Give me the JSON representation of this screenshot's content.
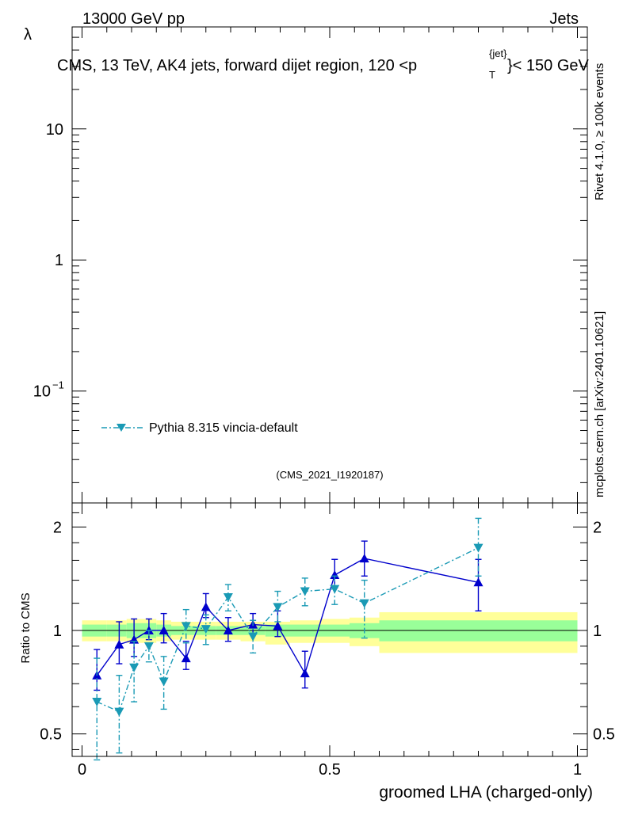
{
  "header": {
    "energy_label": "13000 GeV pp",
    "category_label": "Jets",
    "plot_title_main": "CMS, 13 TeV, AK4 jets, forward dijet region, 120 <p",
    "plot_title_sup": "{jet}",
    "plot_title_sub": "T",
    "plot_title_tail": "}< 150 GeV",
    "side_label_rivet": "Rivet 4.1.0, ≥ 100k events",
    "side_label_mcplots": "mcplots.cern.ch [arXiv:2401.10621]",
    "analysis_id": "(CMS_2021_I1920187)"
  },
  "colors": {
    "model": "#1a9ab5",
    "reference": "#0000cc",
    "band_inner": "#99ff99",
    "band_outer": "#ffff99"
  },
  "chart_data": [
    {
      "type": "line",
      "title": "CMS, 13 TeV, AK4 jets, forward dijet region, 120 < p_T^{jet} < 150 GeV",
      "ylabel": "λ",
      "yscale": "log",
      "ylim": [
        0.014,
        60
      ],
      "y_ticks": [
        {
          "value": 0.1,
          "base": "10",
          "exp": "−1"
        },
        {
          "value": 1,
          "label": "1"
        },
        {
          "value": 10,
          "label": "10"
        }
      ],
      "xlim": [
        -0.02,
        1.02
      ],
      "legend": [
        {
          "name": "Pythia 8.315 vincia-default",
          "color": "#1a9ab5",
          "marker": "triangle-down",
          "style": "dash-dot"
        }
      ],
      "legend_position": "lower-left",
      "series": []
    },
    {
      "type": "line",
      "xlabel": "groomed LHA (charged-only)",
      "ylabel": "Ratio to CMS",
      "yscale": "log",
      "ylim": [
        0.43,
        2.35
      ],
      "xlim": [
        -0.02,
        1.02
      ],
      "x_ticks": [
        {
          "value": 0,
          "label": "0"
        },
        {
          "value": 0.5,
          "label": "0.5"
        },
        {
          "value": 1,
          "label": "1"
        }
      ],
      "y_ticks": [
        {
          "value": 0.5,
          "label": "0.5"
        },
        {
          "value": 1,
          "label": "1"
        },
        {
          "value": 2,
          "label": "2"
        }
      ],
      "reference_bands": [
        {
          "x0": 0.0,
          "x1": 0.05,
          "inner": [
            0.96,
            1.04
          ],
          "outer": [
            0.93,
            1.07
          ]
        },
        {
          "x0": 0.05,
          "x1": 0.09,
          "inner": [
            0.96,
            1.04
          ],
          "outer": [
            0.93,
            1.07
          ]
        },
        {
          "x0": 0.09,
          "x1": 0.12,
          "inner": [
            0.95,
            1.05
          ],
          "outer": [
            0.92,
            1.08
          ]
        },
        {
          "x0": 0.12,
          "x1": 0.15,
          "inner": [
            0.95,
            1.05
          ],
          "outer": [
            0.92,
            1.08
          ]
        },
        {
          "x0": 0.15,
          "x1": 0.18,
          "inner": [
            0.96,
            1.04
          ],
          "outer": [
            0.93,
            1.07
          ]
        },
        {
          "x0": 0.18,
          "x1": 0.23,
          "inner": [
            0.97,
            1.03
          ],
          "outer": [
            0.94,
            1.06
          ]
        },
        {
          "x0": 0.23,
          "x1": 0.27,
          "inner": [
            0.97,
            1.03
          ],
          "outer": [
            0.94,
            1.06
          ]
        },
        {
          "x0": 0.27,
          "x1": 0.32,
          "inner": [
            0.97,
            1.03
          ],
          "outer": [
            0.94,
            1.06
          ]
        },
        {
          "x0": 0.32,
          "x1": 0.37,
          "inner": [
            0.97,
            1.03
          ],
          "outer": [
            0.93,
            1.06
          ]
        },
        {
          "x0": 0.37,
          "x1": 0.42,
          "inner": [
            0.96,
            1.04
          ],
          "outer": [
            0.91,
            1.06
          ]
        },
        {
          "x0": 0.42,
          "x1": 0.48,
          "inner": [
            0.96,
            1.04
          ],
          "outer": [
            0.92,
            1.07
          ]
        },
        {
          "x0": 0.48,
          "x1": 0.54,
          "inner": [
            0.96,
            1.04
          ],
          "outer": [
            0.92,
            1.08
          ]
        },
        {
          "x0": 0.54,
          "x1": 0.6,
          "inner": [
            0.95,
            1.05
          ],
          "outer": [
            0.9,
            1.09
          ]
        },
        {
          "x0": 0.6,
          "x1": 1.0,
          "inner": [
            0.93,
            1.07
          ],
          "outer": [
            0.86,
            1.13
          ]
        }
      ],
      "series": [
        {
          "name": "Reference model",
          "color": "#0000cc",
          "marker": "triangle-up",
          "style": "solid",
          "x": [
            0.03,
            0.075,
            0.105,
            0.135,
            0.165,
            0.21,
            0.25,
            0.295,
            0.345,
            0.395,
            0.45,
            0.51,
            0.57,
            0.8
          ],
          "y": [
            0.74,
            0.91,
            0.94,
            1.0,
            1.0,
            0.83,
            1.17,
            1.0,
            1.04,
            1.03,
            0.75,
            1.45,
            1.62,
            1.38
          ],
          "err_low": [
            0.07,
            0.11,
            0.1,
            0.06,
            0.08,
            0.06,
            0.08,
            0.07,
            0.06,
            0.07,
            0.07,
            0.12,
            0.18,
            0.24
          ],
          "err_high": [
            0.14,
            0.15,
            0.14,
            0.08,
            0.12,
            0.1,
            0.11,
            0.09,
            0.08,
            0.11,
            0.12,
            0.16,
            0.2,
            0.23
          ]
        },
        {
          "name": "Pythia 8.315 vincia-default",
          "color": "#1a9ab5",
          "marker": "triangle-down",
          "style": "dash-dot",
          "x": [
            0.03,
            0.075,
            0.105,
            0.135,
            0.165,
            0.21,
            0.25,
            0.295,
            0.345,
            0.395,
            0.45,
            0.51,
            0.57,
            0.8
          ],
          "y": [
            0.62,
            0.58,
            0.78,
            0.9,
            0.71,
            1.03,
            1.01,
            1.25,
            0.96,
            1.17,
            1.3,
            1.32,
            1.2,
            1.74
          ],
          "err_low": [
            0.2,
            0.14,
            0.16,
            0.09,
            0.12,
            0.11,
            0.1,
            0.11,
            0.1,
            0.11,
            0.12,
            0.13,
            0.25,
            0.3
          ],
          "err_high": [
            0.21,
            0.16,
            0.15,
            0.1,
            0.13,
            0.12,
            0.1,
            0.11,
            0.11,
            0.13,
            0.12,
            0.12,
            0.2,
            0.38
          ]
        }
      ]
    }
  ]
}
